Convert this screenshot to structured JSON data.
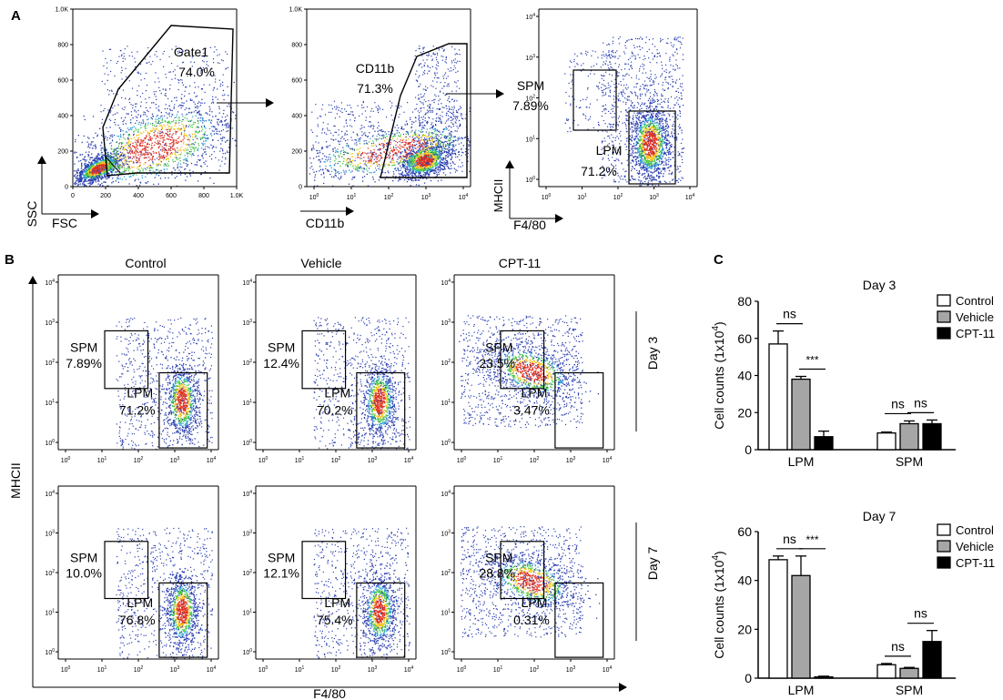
{
  "panel_labels": {
    "a": "A",
    "b": "B",
    "c": "C"
  },
  "panel_a": {
    "plots": [
      {
        "id": "gate1",
        "xlabel": "FSC",
        "ylabel": "SSC",
        "xticks": [
          "0",
          "200",
          "400",
          "600",
          "800",
          "1.0K"
        ],
        "yticks": [
          "0",
          "200",
          "400",
          "600",
          "800",
          "1.0K"
        ],
        "gates": [
          {
            "name": "Gate1",
            "pct": "74.0%"
          }
        ]
      },
      {
        "id": "cd11b",
        "xlabel": "CD11b",
        "ylabel": "",
        "xticks": [
          "0",
          "1",
          "2",
          "3",
          "4"
        ],
        "yticks": [
          "0",
          "200",
          "400",
          "600",
          "800",
          "1.0K"
        ],
        "gates": [
          {
            "name": "CD11b",
            "pct": "71.3%"
          }
        ]
      },
      {
        "id": "f480",
        "xlabel": "F4/80",
        "ylabel": "MHCII",
        "xticks": [
          "0",
          "1",
          "2",
          "3",
          "4"
        ],
        "yticks": [
          "0",
          "1",
          "2",
          "3",
          "4"
        ],
        "gates": [
          {
            "name": "SPM",
            "pct": "7.89%"
          },
          {
            "name": "LPM",
            "pct": "71.2%"
          }
        ]
      }
    ]
  },
  "panel_b": {
    "columns": [
      "Control",
      "Vehicle",
      "CPT-11"
    ],
    "rows": [
      "Day 3",
      "Day 7"
    ],
    "xlabel": "F4/80",
    "ylabel": "MHCII",
    "ticks": [
      "0",
      "1",
      "2",
      "3",
      "4"
    ],
    "cells": [
      [
        {
          "spm": "7.89%",
          "lpm": "71.2%"
        },
        {
          "spm": "12.4%",
          "lpm": "70.2%"
        },
        {
          "spm": "23.5%",
          "lpm": "3.47%"
        }
      ],
      [
        {
          "spm": "10.0%",
          "lpm": "76.8%"
        },
        {
          "spm": "12.1%",
          "lpm": "75.4%"
        },
        {
          "spm": "28.8%",
          "lpm": "0.31%"
        }
      ]
    ],
    "gate_names": {
      "spm": "SPM",
      "lpm": "LPM"
    }
  },
  "chart_data": [
    {
      "type": "bar",
      "title": "Day 3",
      "categories": [
        "LPM",
        "SPM"
      ],
      "series": [
        {
          "name": "Control",
          "values": [
            57,
            9
          ],
          "errors": [
            7,
            0.5
          ],
          "color": "#ffffff"
        },
        {
          "name": "Vehicle",
          "values": [
            38,
            14
          ],
          "errors": [
            1.5,
            1.5
          ],
          "color": "#a6a6a6"
        },
        {
          "name": "CPT-11",
          "values": [
            7,
            14
          ],
          "errors": [
            3,
            2
          ],
          "color": "#000000"
        }
      ],
      "ylabel": "Cell counts (1x10",
      "ylabel_sup": "4",
      "ylabel_end": ")",
      "ylim": [
        0,
        80
      ],
      "yticks": [
        0,
        20,
        40,
        60,
        80
      ],
      "significance": [
        {
          "label": "ns",
          "category": 0,
          "between": [
            0,
            1
          ]
        },
        {
          "label": "***",
          "category": 0,
          "between": [
            1,
            2
          ]
        },
        {
          "label": "ns",
          "category": 1,
          "between": [
            0,
            1
          ]
        },
        {
          "label": "ns",
          "category": 1,
          "between": [
            1,
            2
          ]
        }
      ]
    },
    {
      "type": "bar",
      "title": "Day 7",
      "categories": [
        "LPM",
        "SPM"
      ],
      "series": [
        {
          "name": "Control",
          "values": [
            48.5,
            5.5
          ],
          "errors": [
            1.5,
            0.5
          ],
          "color": "#ffffff"
        },
        {
          "name": "Vehicle",
          "values": [
            42,
            4
          ],
          "errors": [
            8,
            0.4
          ],
          "color": "#a6a6a6"
        },
        {
          "name": "CPT-11",
          "values": [
            0.5,
            15
          ],
          "errors": [
            0.3,
            4.5
          ],
          "color": "#000000"
        }
      ],
      "ylabel": "Cell counts (1x10",
      "ylabel_sup": "4",
      "ylabel_end": ")",
      "ylim": [
        0,
        60
      ],
      "yticks": [
        0,
        20,
        40,
        60
      ],
      "significance": [
        {
          "label": "ns",
          "category": 0,
          "between": [
            0,
            1
          ]
        },
        {
          "label": "***",
          "category": 0,
          "between": [
            1,
            2
          ]
        },
        {
          "label": "ns",
          "category": 1,
          "between": [
            0,
            1
          ]
        },
        {
          "label": "ns",
          "category": 1,
          "between": [
            1,
            2
          ]
        }
      ]
    }
  ]
}
